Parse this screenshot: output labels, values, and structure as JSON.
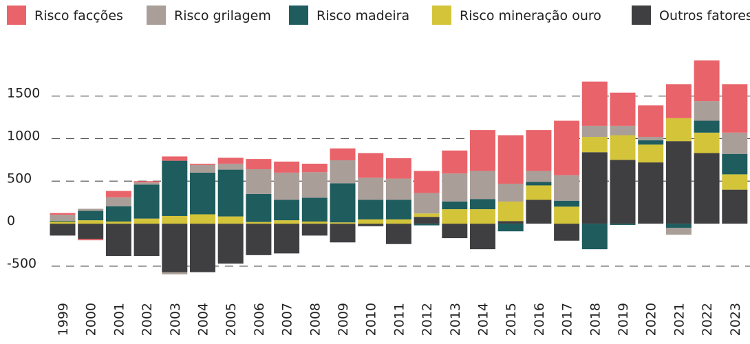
{
  "chart_data": {
    "type": "stacked_bar",
    "categories": [
      "1999",
      "2000",
      "2001",
      "2002",
      "2003",
      "2004",
      "2005",
      "2006",
      "2007",
      "2008",
      "2009",
      "2010",
      "2011",
      "2012",
      "2013",
      "2014",
      "2015",
      "2016",
      "2017",
      "2018",
      "2019",
      "2020",
      "2021",
      "2022",
      "2023"
    ],
    "series": [
      {
        "name": "Risco facções",
        "color": "#e8646a",
        "values": [
          20,
          -15,
          75,
          15,
          50,
          15,
          70,
          120,
          130,
          100,
          140,
          290,
          240,
          260,
          270,
          480,
          570,
          480,
          640,
          520,
          390,
          370,
          400,
          480,
          570
        ]
      },
      {
        "name": "Risco grilagem",
        "color": "#aa9e98",
        "values": [
          70,
          25,
          105,
          25,
          -25,
          90,
          70,
          290,
          320,
          300,
          270,
          260,
          250,
          240,
          330,
          330,
          210,
          130,
          300,
          130,
          110,
          40,
          -80,
          230,
          250
        ]
      },
      {
        "name": "Risco madeira",
        "color": "#1e5c5e",
        "values": [
          10,
          110,
          180,
          400,
          650,
          490,
          550,
          330,
          240,
          280,
          460,
          230,
          230,
          -20,
          90,
          120,
          -90,
          40,
          70,
          -300,
          -15,
          50,
          -50,
          140,
          240
        ]
      },
      {
        "name": "Risco mineração ouro",
        "color": "#d4c43a",
        "values": [
          25,
          40,
          25,
          60,
          90,
          110,
          85,
          20,
          40,
          25,
          15,
          50,
          50,
          40,
          170,
          170,
          230,
          170,
          200,
          180,
          290,
          210,
          270,
          240,
          180
        ]
      },
      {
        "name": "Outros fatores",
        "color": "#3f3f41",
        "values": [
          -140,
          -180,
          -380,
          -380,
          -570,
          -570,
          -470,
          -370,
          -350,
          -140,
          -220,
          -30,
          -240,
          80,
          -170,
          -300,
          30,
          280,
          -200,
          840,
          750,
          720,
          970,
          830,
          400
        ]
      }
    ],
    "ylim": [
      -800,
      1950
    ],
    "yticks": [
      -500,
      0,
      500,
      1000,
      1500
    ],
    "grid": true
  }
}
